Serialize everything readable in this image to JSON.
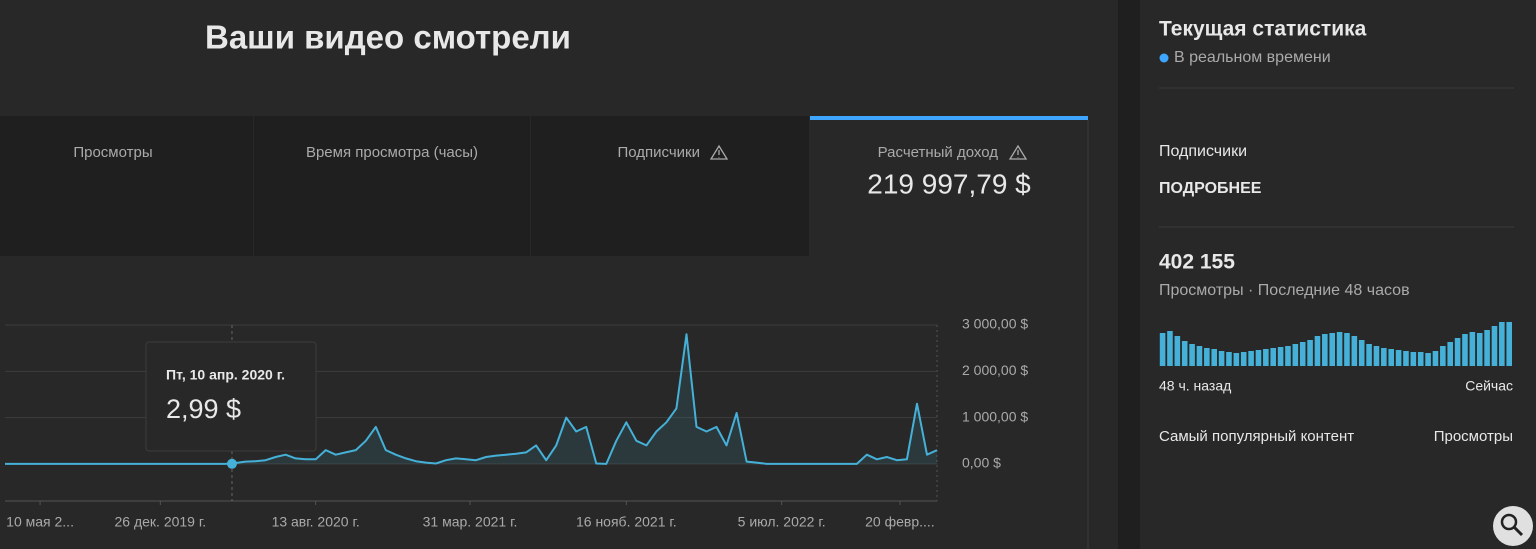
{
  "header": {
    "title": "Ваши видео смотрели"
  },
  "tabs": [
    {
      "label": "Просмотры"
    },
    {
      "label": "Время просмотра (часы)"
    },
    {
      "label": "Подписчики"
    },
    {
      "label": "Расчетный доход",
      "value": "219 997,79 $"
    }
  ],
  "chart_data": [
    {
      "type": "line",
      "color": "#45b1d8",
      "values": [
        0,
        0,
        0,
        0,
        0,
        0,
        0,
        0,
        0,
        0,
        0,
        0,
        0,
        0,
        0,
        0,
        0,
        0,
        0,
        0,
        0,
        0,
        0,
        20,
        50,
        60,
        80,
        150,
        200,
        120,
        100,
        100,
        300,
        200,
        250,
        300,
        500,
        800,
        300,
        200,
        120,
        60,
        30,
        10,
        80,
        120,
        100,
        80,
        150,
        180,
        200,
        220,
        250,
        400,
        80,
        400,
        1000,
        700,
        800,
        10,
        0,
        500,
        900,
        500,
        400,
        700,
        900,
        1200,
        2800,
        800,
        700,
        800,
        400,
        1100,
        50,
        30,
        0,
        0,
        0,
        0,
        0,
        0,
        0,
        0,
        0,
        0,
        200,
        100,
        150,
        80,
        100,
        1300,
        200,
        300
      ],
      "xticks": [
        {
          "value": 3.5,
          "label": "10 мая 2..."
        },
        {
          "value": 15.5,
          "label": "26 дек. 2019 г."
        },
        {
          "value": 31,
          "label": "13 авг. 2020 г."
        },
        {
          "value": 46.4,
          "label": "31 мар. 2021 г."
        },
        {
          "value": 62,
          "label": "16 нояб. 2021 г."
        },
        {
          "value": 77.5,
          "label": "5 июл. 2022 г."
        },
        {
          "value": 89.3,
          "label": "20 февр...."
        }
      ],
      "ylim": [
        -800,
        3000
      ],
      "yticks": [
        {
          "value": 0,
          "label": "0,00 $"
        },
        {
          "value": 1000,
          "label": "1 000,00 $"
        },
        {
          "value": 2000,
          "label": "2 000,00 $"
        },
        {
          "value": 3000,
          "label": "3 000,00 $"
        }
      ],
      "grid": true,
      "tooltip": {
        "title": "Пт, 10 апр. 2020 г.",
        "x": 22.65,
        "value": 2.99,
        "label": "2,99 $"
      }
    },
    {
      "type": "bar",
      "color": "#45b1d8",
      "values": [
        33,
        35,
        30,
        25,
        22,
        20,
        18,
        17,
        15,
        14,
        13,
        14,
        15,
        16,
        17,
        18,
        19,
        20,
        22,
        24,
        26,
        30,
        32,
        33,
        34,
        33,
        30,
        26,
        22,
        20,
        18,
        17,
        16,
        15,
        14,
        14,
        13,
        15,
        20,
        24,
        28,
        32,
        34,
        33,
        36,
        40,
        44,
        44
      ],
      "xlabels": [
        "48 ч. назад",
        "Сейчас"
      ]
    }
  ],
  "realtime": {
    "title": "Текущая статистика",
    "status": "В реальном времени",
    "subscribers_label": "Подписчики",
    "details_link": "ПОДРОБНЕЕ",
    "views": "402 155",
    "views_caption": "Просмотры · Последние 48 часов",
    "top_content": "Самый популярный контент",
    "top_content_metric": "Просмотры"
  }
}
